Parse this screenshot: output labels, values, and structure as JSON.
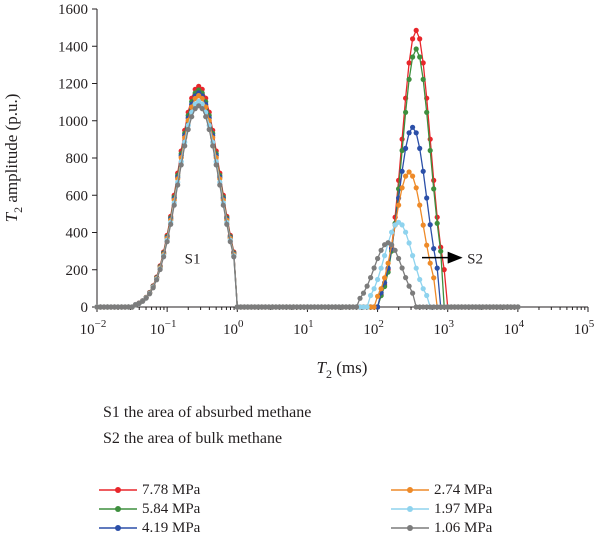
{
  "chart_data": {
    "type": "line",
    "x_scale": "log",
    "xlim": [
      0.01,
      100000
    ],
    "ylim": [
      0,
      1600
    ],
    "yticks": [
      0,
      200,
      400,
      600,
      800,
      1000,
      1200,
      1400,
      1600
    ],
    "xticks": [
      {
        "value": 0.01,
        "base": "10",
        "exp": "−2"
      },
      {
        "value": 0.1,
        "base": "10",
        "exp": "−1"
      },
      {
        "value": 1,
        "base": "10",
        "exp": "0"
      },
      {
        "value": 10,
        "base": "10",
        "exp": "1"
      },
      {
        "value": 100,
        "base": "10",
        "exp": "2"
      },
      {
        "value": 1000,
        "base": "10",
        "exp": "3"
      },
      {
        "value": 10000,
        "base": "10",
        "exp": "4"
      },
      {
        "value": 100000,
        "base": "10",
        "exp": "5"
      }
    ],
    "ylabel": {
      "main": "T",
      "sub": "2",
      "rest": " amplitude (p.u.)"
    },
    "xlabel": {
      "main": "T",
      "sub": "2",
      "rest": " (ms)"
    },
    "grid": false,
    "annotations": [
      {
        "text": "S1",
        "x": 0.3,
        "y": 260
      },
      {
        "text": "S2",
        "x": 3200,
        "y": 260,
        "arrow_from_x": 430,
        "arrow_y": 265
      }
    ],
    "s1_peak": {
      "center_log": -0.55,
      "sigma": 0.3,
      "cut_left_log": -1.45,
      "cut_right_log": 0.0
    },
    "series": [
      {
        "name": "7.78 MPa",
        "color": "#e8262b",
        "s1_peak": 1185,
        "s2_peak": 1485,
        "s2_center_log": 2.55,
        "s2_sigma": 0.2,
        "s2_left_log": 2.05,
        "s2_right_log": 2.97
      },
      {
        "name": "5.84 MPa",
        "color": "#3e8f3e",
        "s1_peak": 1165,
        "s2_peak": 1385,
        "s2_center_log": 2.55,
        "s2_sigma": 0.2,
        "s2_left_log": 2.05,
        "s2_right_log": 2.92
      },
      {
        "name": "4.19 MPa",
        "color": "#2b4fa8",
        "s1_peak": 1150,
        "s2_peak": 965,
        "s2_center_log": 2.5,
        "s2_sigma": 0.2,
        "s2_left_log": 2.02,
        "s2_right_log": 2.85
      },
      {
        "name": "2.74 MPa",
        "color": "#ee8a28",
        "s1_peak": 1135,
        "s2_peak": 725,
        "s2_center_log": 2.45,
        "s2_sigma": 0.2,
        "s2_left_log": 2.0,
        "s2_right_log": 2.8
      },
      {
        "name": "1.97 MPa",
        "color": "#8fd3ee",
        "s1_peak": 1105,
        "s2_peak": 455,
        "s2_center_log": 2.3,
        "s2_sigma": 0.2,
        "s2_left_log": 1.9,
        "s2_right_log": 2.7
      },
      {
        "name": "1.06 MPa",
        "color": "#7c7c7c",
        "s1_peak": 1080,
        "s2_peak": 345,
        "s2_center_log": 2.15,
        "s2_sigma": 0.2,
        "s2_left_log": 1.75,
        "s2_right_log": 2.55
      }
    ]
  },
  "notes": [
    "S1 the area of absurbed methane",
    "S2 the area of bulk methane"
  ]
}
